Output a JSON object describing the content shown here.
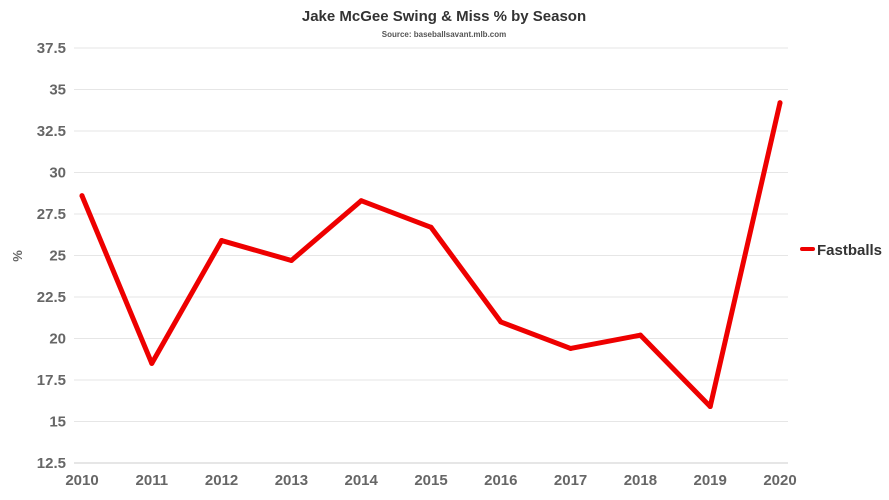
{
  "chart_data": {
    "type": "line",
    "title": "Jake McGee Swing & Miss % by Season",
    "subtitle": "Source: baseballsavant.mlb.com",
    "xlabel": "",
    "ylabel": "%",
    "categories": [
      "2010",
      "2011",
      "2012",
      "2013",
      "2014",
      "2015",
      "2016",
      "2017",
      "2018",
      "2019",
      "2020"
    ],
    "series": [
      {
        "name": "Fastballs",
        "color": "#ee0000",
        "values": [
          28.6,
          18.5,
          25.9,
          24.7,
          28.3,
          26.7,
          21.0,
          19.4,
          20.2,
          15.9,
          34.2
        ]
      }
    ],
    "yticks": [
      "12.5",
      "15",
      "17.5",
      "20",
      "22.5",
      "25",
      "27.5",
      "30",
      "32.5",
      "35",
      "37.5"
    ],
    "ylim": [
      12.5,
      37.5
    ],
    "grid": true,
    "legend": "right"
  }
}
